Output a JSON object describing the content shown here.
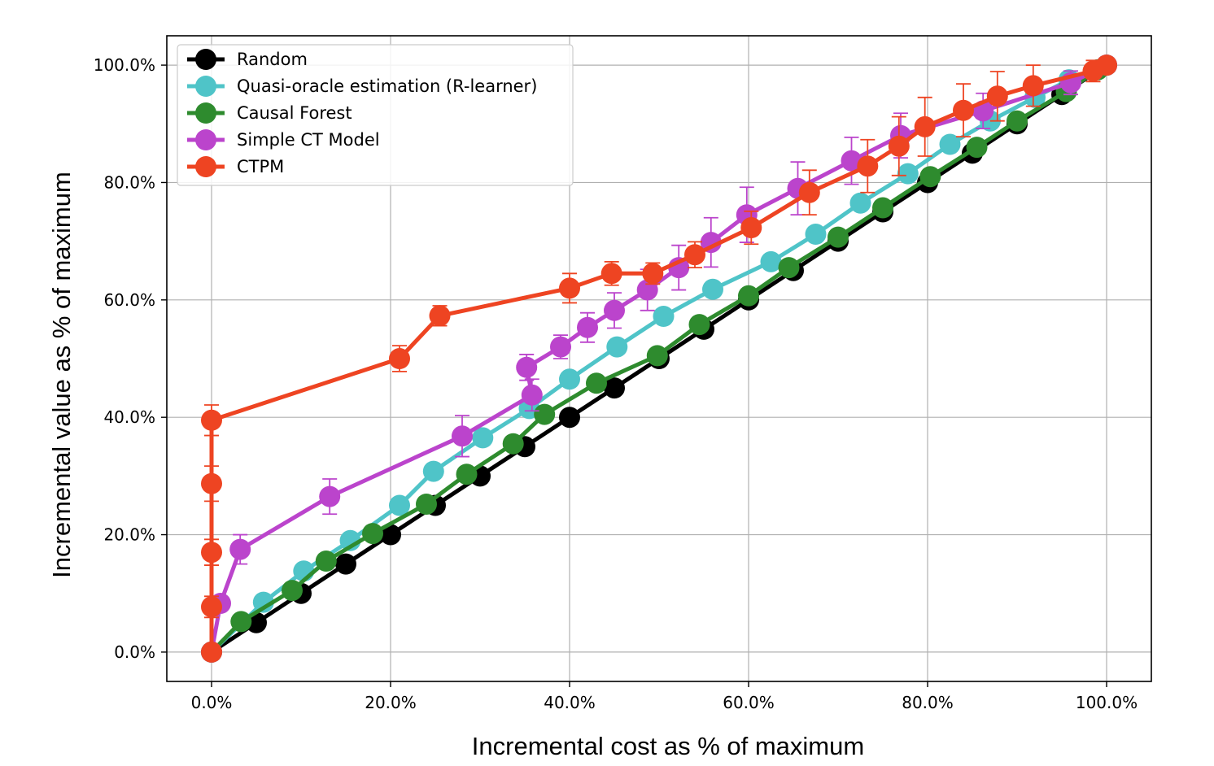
{
  "chart_data": {
    "type": "line",
    "title": "",
    "xlabel": "Incremental cost as % of maximum",
    "ylabel": "Incremental value as % of maximum",
    "xlim": [
      -0.05,
      1.05
    ],
    "ylim": [
      -0.05,
      1.05
    ],
    "xticks": [
      0,
      0.2,
      0.4,
      0.6,
      0.8,
      1.0
    ],
    "yticks": [
      0,
      0.2,
      0.4,
      0.6,
      0.8,
      1.0
    ],
    "xtick_labels": [
      "0.0%",
      "20.0%",
      "40.0%",
      "60.0%",
      "80.0%",
      "100.0%"
    ],
    "ytick_labels": [
      "0.0%",
      "20.0%",
      "40.0%",
      "60.0%",
      "80.0%",
      "100.0%"
    ],
    "grid": true,
    "legend_position": "top-left",
    "series": [
      {
        "name": "Random",
        "color": "#000000",
        "x": [
          0,
          0.05,
          0.1,
          0.15,
          0.2,
          0.25,
          0.3,
          0.35,
          0.4,
          0.45,
          0.5,
          0.55,
          0.6,
          0.65,
          0.7,
          0.75,
          0.8,
          0.85,
          0.9,
          0.95,
          1.0
        ],
        "y": [
          0,
          0.05,
          0.1,
          0.15,
          0.2,
          0.25,
          0.3,
          0.35,
          0.4,
          0.45,
          0.5,
          0.55,
          0.6,
          0.65,
          0.7,
          0.75,
          0.8,
          0.85,
          0.9,
          0.95,
          1.0
        ]
      },
      {
        "name": "Quasi-oracle estimation (R-learner)",
        "color": "#4fc4c8",
        "x": [
          0,
          0.058,
          0.103,
          0.155,
          0.21,
          0.248,
          0.303,
          0.355,
          0.4,
          0.453,
          0.505,
          0.56,
          0.625,
          0.675,
          0.725,
          0.778,
          0.825,
          0.87,
          0.92,
          0.958,
          1.0
        ],
        "y": [
          0,
          0.085,
          0.138,
          0.19,
          0.25,
          0.308,
          0.365,
          0.415,
          0.465,
          0.52,
          0.572,
          0.618,
          0.665,
          0.712,
          0.765,
          0.815,
          0.865,
          0.905,
          0.945,
          0.975,
          1.0
        ]
      },
      {
        "name": "Causal Forest",
        "color": "#2e8b2e",
        "x": [
          0,
          0.033,
          0.09,
          0.128,
          0.18,
          0.24,
          0.285,
          0.337,
          0.372,
          0.43,
          0.498,
          0.545,
          0.6,
          0.645,
          0.7,
          0.75,
          0.803,
          0.855,
          0.9,
          0.955,
          0.99
        ],
        "y": [
          0,
          0.052,
          0.105,
          0.155,
          0.202,
          0.252,
          0.303,
          0.355,
          0.405,
          0.458,
          0.505,
          0.558,
          0.607,
          0.655,
          0.707,
          0.757,
          0.81,
          0.86,
          0.905,
          0.955,
          0.992
        ]
      },
      {
        "name": "Simple CT Model",
        "color": "#bb44cc",
        "x": [
          0,
          0.01,
          0.032,
          0.132,
          0.28,
          0.358,
          0.352,
          0.39,
          0.42,
          0.45,
          0.487,
          0.522,
          0.558,
          0.598,
          0.655,
          0.715,
          0.77,
          0.862,
          0.96,
          1.0
        ],
        "y": [
          0,
          0.083,
          0.175,
          0.265,
          0.368,
          0.438,
          0.485,
          0.52,
          0.553,
          0.582,
          0.617,
          0.655,
          0.698,
          0.745,
          0.79,
          0.837,
          0.88,
          0.922,
          0.97,
          1.0
        ],
        "err": [
          0,
          0.01,
          0.025,
          0.03,
          0.035,
          0.027,
          0.022,
          0.02,
          0.025,
          0.03,
          0.035,
          0.038,
          0.042,
          0.047,
          0.045,
          0.04,
          0.038,
          0.03,
          0.02,
          0
        ]
      },
      {
        "name": "CTPM",
        "color": "#ee4422",
        "x": [
          0,
          0,
          0,
          0,
          0,
          0.21,
          0.255,
          0.4,
          0.447,
          0.493,
          0.54,
          0.603,
          0.668,
          0.733,
          0.768,
          0.797,
          0.84,
          0.878,
          0.918,
          0.985,
          1.0
        ],
        "y": [
          0,
          0.077,
          0.17,
          0.287,
          0.395,
          0.5,
          0.573,
          0.62,
          0.645,
          0.645,
          0.677,
          0.723,
          0.783,
          0.828,
          0.862,
          0.895,
          0.923,
          0.947,
          0.965,
          0.99,
          1.0
        ],
        "err": [
          0,
          0.018,
          0.022,
          0.03,
          0.026,
          0.022,
          0.017,
          0.025,
          0.02,
          0.018,
          0.022,
          0.028,
          0.038,
          0.045,
          0.05,
          0.05,
          0.045,
          0.042,
          0.035,
          0.018,
          0
        ]
      }
    ]
  }
}
